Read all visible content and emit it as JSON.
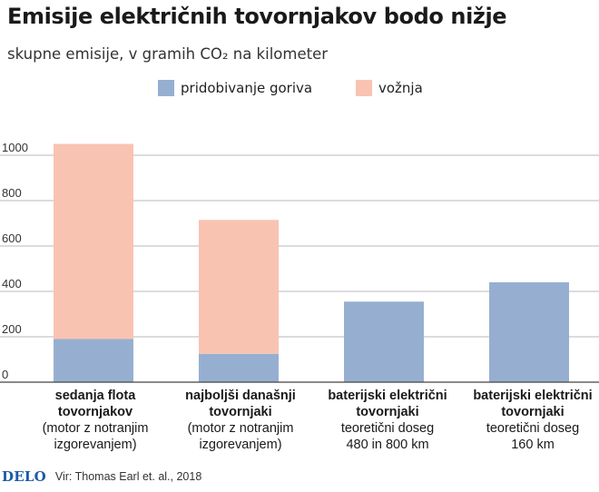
{
  "header": {
    "title": "Emisije električnih tovornjakov bodo nižje",
    "subtitle": "skupne emisije, v gramih CO₂ na kilometer"
  },
  "legend": {
    "items": [
      {
        "label": "pridobivanje goriva",
        "color": "#96afd1"
      },
      {
        "label": "vožnja",
        "color": "#f9c3b2"
      }
    ]
  },
  "chart_data": {
    "type": "bar",
    "stacked": true,
    "title": "Emisije električnih tovornjakov bodo nižje",
    "subtitle": "skupne emisije, v gramih CO₂ na kilometer",
    "xlabel": "",
    "ylabel": "",
    "ylim": [
      0,
      1100
    ],
    "yticks": [
      0,
      200,
      400,
      600,
      800,
      1000
    ],
    "grid": true,
    "legend_position": "top-center",
    "categories": [
      "sedanja flota tovornjakov (motor z notranjim izgorevanjem)",
      "najboljši današnji tovornjaki (motor z notranjim izgorevanjem)",
      "baterijski električni tovornjaki teoretični doseg 480 in 800 km",
      "baterijski električni tovornjaki teoretični doseg 160 km"
    ],
    "series": [
      {
        "name": "pridobivanje goriva",
        "values": [
          190,
          125,
          355,
          440
        ],
        "color": "#96afd1"
      },
      {
        "name": "vožnja",
        "values": [
          860,
          590,
          0,
          0
        ],
        "color": "#f9c3b2"
      }
    ]
  },
  "category_labels": [
    {
      "main1": "sedanja flota",
      "main2": "tovornjakov",
      "note1": "(motor z notranjim",
      "note2": "izgorevanjem)"
    },
    {
      "main1": "najboljši današnji",
      "main2": "tovornjaki",
      "note1": "(motor z notranjim",
      "note2": "izgorevanjem)"
    },
    {
      "main1": "baterijski električni",
      "main2": "tovornjaki",
      "note1": "teoretični doseg",
      "note2": "480 in 800 km"
    },
    {
      "main1": "baterijski električni",
      "main2": "tovornjaki",
      "note1": "teoretični doseg",
      "note2": "160 km"
    }
  ],
  "footer": {
    "logo": "DELO",
    "source": "Vir: Thomas Earl et. al., 2018"
  }
}
